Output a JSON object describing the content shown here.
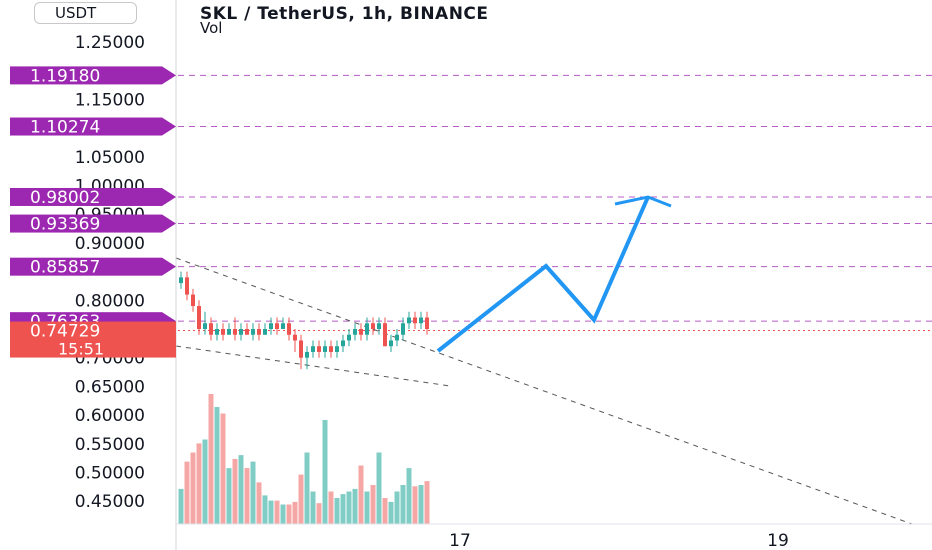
{
  "header": {
    "title": "SKL / TetherUS, 1h, BINANCE",
    "volume_label": "Vol",
    "unit": "USDT"
  },
  "colors": {
    "up": "#26a69a",
    "down": "#ef5350",
    "vol_up": "#7fcdc4",
    "vol_down": "#f4a7a5",
    "level": "#9c27b0",
    "arrow": "#2196f3",
    "price_tag": "#ef5350"
  },
  "chart_data": {
    "type": "candlestick",
    "ylim": [
      0.42,
      1.28
    ],
    "y_ticks": [
      "1.25000",
      "1.15000",
      "1.05000",
      "1.00000",
      "0.95000",
      "0.90000",
      "0.80000",
      "0.70000",
      "0.65000",
      "0.60000",
      "0.55000",
      "0.50000",
      "0.45000"
    ],
    "x_ticks": [
      "17",
      "19"
    ],
    "levels": [
      {
        "label": "1.19180",
        "value": 1.1918
      },
      {
        "label": "1.10274",
        "value": 1.10274
      },
      {
        "label": "0.98002",
        "value": 0.98002
      },
      {
        "label": "0.93369",
        "value": 0.93369
      },
      {
        "label": "0.85857",
        "value": 0.85857
      },
      {
        "label": "0.76363",
        "value": 0.76363
      }
    ],
    "current_price": {
      "label": "0.74729",
      "countdown": "15:51",
      "value": 0.74729
    },
    "candles": [
      [
        0.83,
        0.84,
        0.85,
        0.82
      ],
      [
        0.84,
        0.81,
        0.85,
        0.8
      ],
      [
        0.81,
        0.79,
        0.82,
        0.78
      ],
      [
        0.79,
        0.75,
        0.8,
        0.74
      ],
      [
        0.75,
        0.76,
        0.78,
        0.74
      ],
      [
        0.76,
        0.74,
        0.77,
        0.73
      ],
      [
        0.74,
        0.75,
        0.76,
        0.73
      ],
      [
        0.75,
        0.74,
        0.76,
        0.73
      ],
      [
        0.74,
        0.75,
        0.76,
        0.74
      ],
      [
        0.75,
        0.74,
        0.77,
        0.73
      ],
      [
        0.74,
        0.75,
        0.76,
        0.73
      ],
      [
        0.75,
        0.74,
        0.76,
        0.74
      ],
      [
        0.74,
        0.75,
        0.76,
        0.73
      ],
      [
        0.75,
        0.74,
        0.76,
        0.73
      ],
      [
        0.74,
        0.75,
        0.76,
        0.74
      ],
      [
        0.75,
        0.76,
        0.77,
        0.74
      ],
      [
        0.76,
        0.75,
        0.77,
        0.74
      ],
      [
        0.75,
        0.76,
        0.77,
        0.75
      ],
      [
        0.76,
        0.74,
        0.77,
        0.73
      ],
      [
        0.74,
        0.73,
        0.75,
        0.71
      ],
      [
        0.73,
        0.7,
        0.74,
        0.68
      ],
      [
        0.7,
        0.71,
        0.72,
        0.68
      ],
      [
        0.71,
        0.72,
        0.73,
        0.7
      ],
      [
        0.72,
        0.71,
        0.73,
        0.7
      ],
      [
        0.71,
        0.72,
        0.73,
        0.7
      ],
      [
        0.72,
        0.71,
        0.73,
        0.7
      ],
      [
        0.71,
        0.72,
        0.73,
        0.7
      ],
      [
        0.72,
        0.73,
        0.74,
        0.71
      ],
      [
        0.73,
        0.74,
        0.75,
        0.72
      ],
      [
        0.74,
        0.75,
        0.76,
        0.73
      ],
      [
        0.75,
        0.74,
        0.76,
        0.73
      ],
      [
        0.74,
        0.76,
        0.77,
        0.73
      ],
      [
        0.76,
        0.75,
        0.77,
        0.74
      ],
      [
        0.75,
        0.76,
        0.77,
        0.74
      ],
      [
        0.76,
        0.72,
        0.77,
        0.72
      ],
      [
        0.72,
        0.73,
        0.74,
        0.71
      ],
      [
        0.73,
        0.74,
        0.75,
        0.72
      ],
      [
        0.74,
        0.76,
        0.77,
        0.73
      ],
      [
        0.76,
        0.77,
        0.78,
        0.75
      ],
      [
        0.77,
        0.76,
        0.78,
        0.75
      ],
      [
        0.76,
        0.77,
        0.78,
        0.75
      ],
      [
        0.77,
        0.75,
        0.78,
        0.74
      ]
    ],
    "volumes": [
      0.27,
      0.48,
      0.55,
      0.62,
      0.65,
      1.0,
      0.9,
      0.85,
      0.43,
      0.5,
      0.53,
      0.43,
      0.48,
      0.32,
      0.22,
      0.18,
      0.18,
      0.15,
      0.15,
      0.17,
      0.38,
      0.55,
      0.25,
      0.16,
      0.8,
      0.25,
      0.2,
      0.23,
      0.25,
      0.27,
      0.45,
      0.25,
      0.3,
      0.55,
      0.2,
      0.17,
      0.25,
      0.3,
      0.43,
      0.29,
      0.3,
      0.33
    ]
  }
}
